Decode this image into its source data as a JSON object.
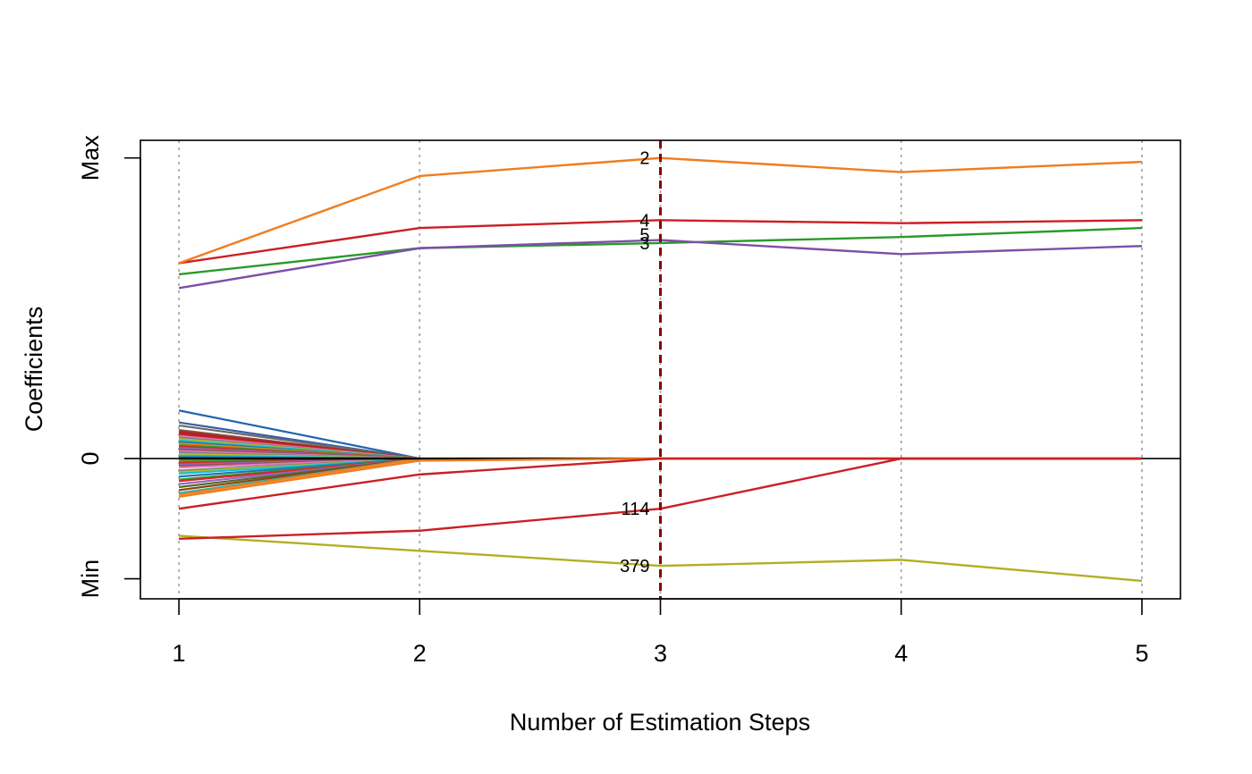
{
  "chart_data": {
    "type": "line",
    "title": "",
    "xlabel": "Number of Estimation Steps",
    "ylabel": "Coefficients",
    "x": [
      1,
      2,
      3,
      4,
      5
    ],
    "x_ticks": [
      "1",
      "2",
      "3",
      "4",
      "5"
    ],
    "y_ticks": [
      {
        "label": "Min",
        "value": -0.4
      },
      {
        "label": "0",
        "value": 0
      },
      {
        "label": "Max",
        "value": 1
      }
    ],
    "xlim": [
      0.84,
      5.16
    ],
    "ylim": [
      -0.4667,
      1.0587
    ],
    "grid": "vertical dotted at each step",
    "zero_line": true,
    "marked_step": 3,
    "series": [
      {
        "name": "2",
        "color": "#f07d1e",
        "values": [
          0.65,
          0.94,
          1.0,
          0.953,
          0.987
        ]
      },
      {
        "name": "4",
        "color": "#cb1f25",
        "values": [
          0.65,
          0.767,
          0.793,
          0.783,
          0.793
        ]
      },
      {
        "name": "5",
        "color": "#7d4fa8",
        "values": [
          0.567,
          0.7,
          0.727,
          0.68,
          0.707
        ]
      },
      {
        "name": "3",
        "color": "#2a9a2a",
        "values": [
          0.613,
          0.7,
          0.717,
          0.737,
          0.767
        ]
      },
      {
        "name": "114",
        "color": "#cb1f25",
        "values": [
          -0.267,
          -0.24,
          -0.167,
          0,
          0
        ]
      },
      {
        "name": "379",
        "color": "#b4ae23",
        "values": [
          -0.257,
          -0.307,
          -0.357,
          -0.337,
          -0.407
        ]
      },
      {
        "name": "",
        "color": "#cb1f25",
        "values": [
          -0.167,
          -0.053,
          0,
          0,
          0
        ]
      },
      {
        "name": "",
        "color": "#f07d1e",
        "values": [
          -0.127,
          -0.007,
          0,
          0,
          0
        ]
      },
      {
        "name": "",
        "color": "#000000",
        "values": [
          0,
          0,
          0,
          0,
          0
        ]
      }
    ],
    "step1_bundle": {
      "note": "many small coefficients at step 1 that drop to 0 by step 2",
      "values": [
        0.16,
        0.12,
        0.11,
        0.095,
        0.09,
        0.085,
        0.08,
        0.075,
        0.07,
        0.065,
        0.06,
        0.055,
        0.05,
        0.045,
        0.04,
        0.035,
        0.03,
        0.025,
        0.02,
        0.015,
        0.01,
        0.005,
        -0.005,
        -0.01,
        -0.015,
        -0.02,
        -0.025,
        -0.03,
        -0.04,
        -0.045,
        -0.05,
        -0.06,
        -0.07,
        -0.075,
        -0.085,
        -0.095,
        -0.105,
        -0.115,
        -0.12
      ],
      "colors": [
        "#2066ac",
        "#3a5fa0",
        "#6b6b6b",
        "#8c564b",
        "#a52a2a",
        "#b22222",
        "#cb1f25",
        "#e377c2",
        "#7f7f7f",
        "#bcbd22",
        "#17becf",
        "#1f77b4",
        "#ff7f0e",
        "#2ca02c",
        "#d62728",
        "#9467bd",
        "#8c564b",
        "#e377c2",
        "#7f7f7f",
        "#bcbd22",
        "#17becf",
        "#1f77b4",
        "#ff7f0e",
        "#2ca02c",
        "#d62728",
        "#9467bd",
        "#8c564b",
        "#e377c2",
        "#7f7f7f",
        "#bcbd22",
        "#17becf",
        "#1f77b4",
        "#2ca02c",
        "#d62728",
        "#9467bd",
        "#556b2f",
        "#8b4513",
        "#20b2aa",
        "#f07d1e"
      ]
    },
    "point_labels": [
      {
        "text": "2",
        "x": 3,
        "y": 1.0
      },
      {
        "text": "4",
        "x": 3,
        "y": 0.793
      },
      {
        "text": "5",
        "x": 3,
        "y": 0.745
      },
      {
        "text": "3",
        "x": 3,
        "y": 0.717
      },
      {
        "text": "114",
        "x": 3,
        "y": -0.167
      },
      {
        "text": "379",
        "x": 3,
        "y": -0.357
      }
    ]
  }
}
